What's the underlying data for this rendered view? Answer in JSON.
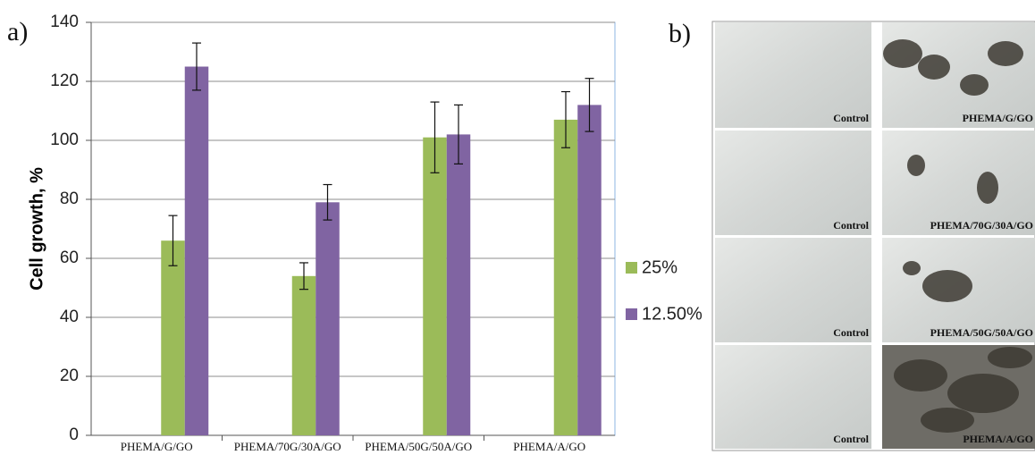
{
  "panels": {
    "a": "a)",
    "b": "b)"
  },
  "chart_data": {
    "type": "bar",
    "ylabel": "Cell growth, %",
    "categories": [
      "PHEMA/G/GO",
      "PHEMA/70G/30A/GO",
      "PHEMA/50G/50A/GO",
      "PHEMA/A/GO"
    ],
    "series": [
      {
        "name": "25%",
        "color": "#9bbb59",
        "values": [
          66,
          54,
          101,
          107
        ],
        "errors": [
          8.5,
          4.5,
          12,
          9.5
        ]
      },
      {
        "name": "12.50%",
        "color": "#8064a2",
        "values": [
          125,
          79,
          102,
          112
        ],
        "errors": [
          8,
          6,
          10,
          9
        ]
      }
    ],
    "ylim": [
      0,
      140
    ],
    "yticks": [
      0,
      20,
      40,
      60,
      80,
      100,
      120,
      140
    ],
    "grid": true,
    "legend": "right"
  },
  "micrographs": [
    {
      "left": "Control",
      "right": "PHEMA/G/GO"
    },
    {
      "left": "Control",
      "right": "PHEMA/70G/30A/GO"
    },
    {
      "left": "Control",
      "right": "PHEMA/50G/50A/GO"
    },
    {
      "left": "Control",
      "right": "PHEMA/A/GO"
    }
  ]
}
